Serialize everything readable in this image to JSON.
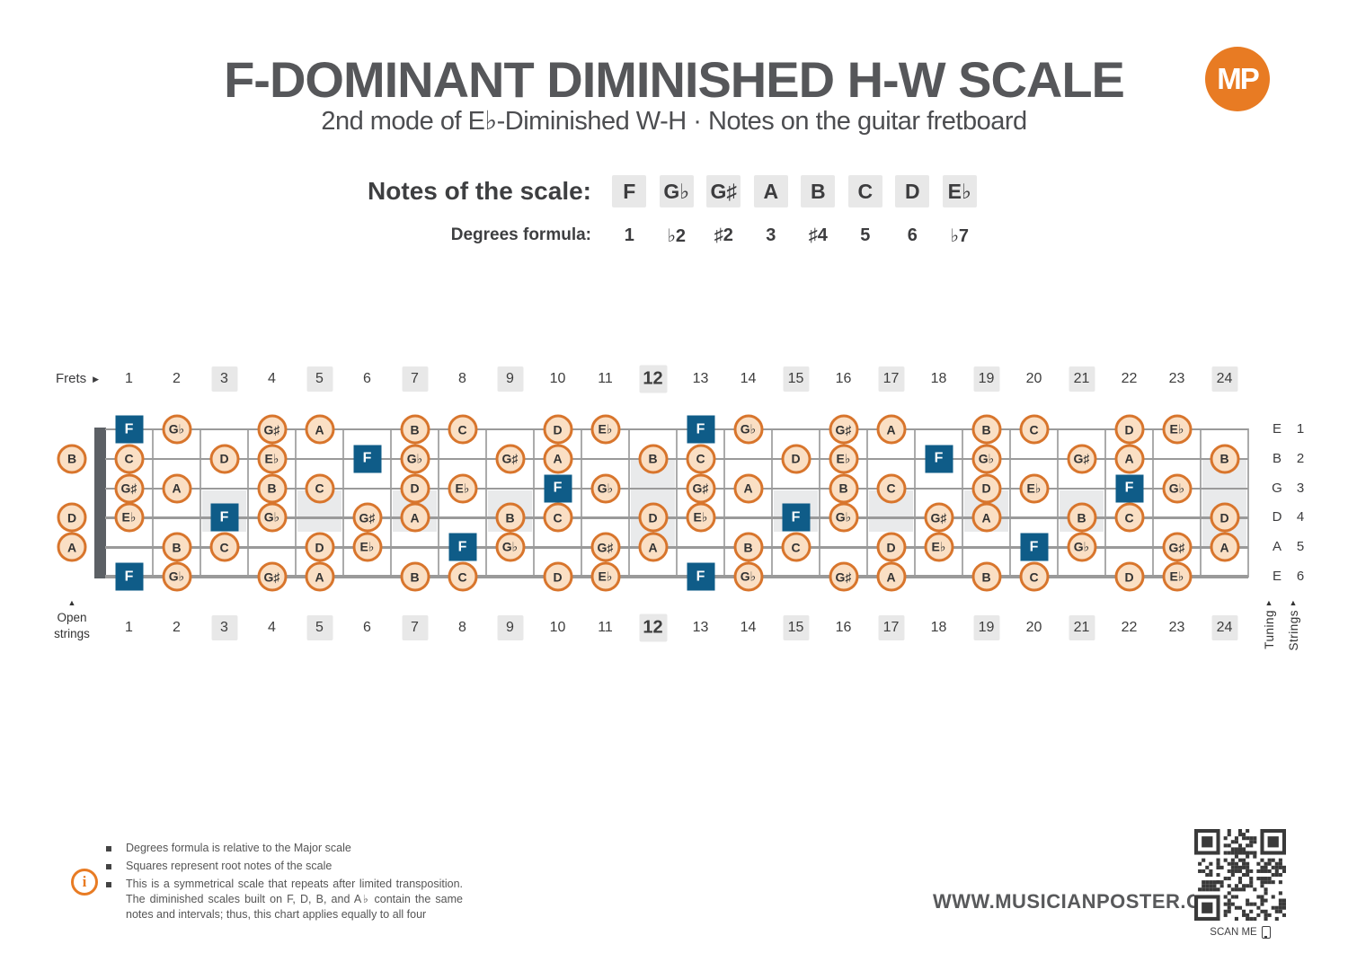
{
  "header": {
    "title": "F-DOMINANT DIMINISHED H-W SCALE",
    "subtitle": "2nd mode of E♭-Diminished W-H · Notes on the guitar fretboard",
    "logo_text": "MP"
  },
  "scale": {
    "notes_label": "Notes of the scale:",
    "degrees_label": "Degrees formula:",
    "notes": [
      "F",
      "G♭",
      "G♯",
      "A",
      "B",
      "C",
      "D",
      "E♭"
    ],
    "degrees": [
      "1",
      "♭2",
      "♯2",
      "3",
      "♯4",
      "5",
      "6",
      "♭7"
    ]
  },
  "fretboard": {
    "frets_label": "Frets",
    "open_strings_label": "Open strings",
    "tuning_label": "Tuning",
    "strings_label": "Strings",
    "fret_count": 24,
    "highlighted_frets": [
      3,
      5,
      7,
      9,
      12,
      15,
      17,
      19,
      21,
      24
    ],
    "emphasized_fret": 12,
    "single_inlay_frets": [
      3,
      5,
      7,
      9,
      15,
      17,
      19,
      21
    ],
    "double_inlay_frets": [
      12,
      24
    ],
    "strings": [
      {
        "number": 1,
        "tuning": "E",
        "open_note": null,
        "notes": [
          {
            "fret": 1,
            "label": "F",
            "root": true
          },
          {
            "fret": 2,
            "label": "G♭"
          },
          {
            "fret": 4,
            "label": "G♯"
          },
          {
            "fret": 5,
            "label": "A"
          },
          {
            "fret": 7,
            "label": "B"
          },
          {
            "fret": 8,
            "label": "C"
          },
          {
            "fret": 10,
            "label": "D"
          },
          {
            "fret": 11,
            "label": "E♭"
          },
          {
            "fret": 13,
            "label": "F",
            "root": true
          },
          {
            "fret": 14,
            "label": "G♭"
          },
          {
            "fret": 16,
            "label": "G♯"
          },
          {
            "fret": 17,
            "label": "A"
          },
          {
            "fret": 19,
            "label": "B"
          },
          {
            "fret": 20,
            "label": "C"
          },
          {
            "fret": 22,
            "label": "D"
          },
          {
            "fret": 23,
            "label": "E♭"
          }
        ]
      },
      {
        "number": 2,
        "tuning": "B",
        "open_note": "B",
        "notes": [
          {
            "fret": 1,
            "label": "C"
          },
          {
            "fret": 3,
            "label": "D"
          },
          {
            "fret": 4,
            "label": "E♭"
          },
          {
            "fret": 6,
            "label": "F",
            "root": true
          },
          {
            "fret": 7,
            "label": "G♭"
          },
          {
            "fret": 9,
            "label": "G♯"
          },
          {
            "fret": 10,
            "label": "A"
          },
          {
            "fret": 12,
            "label": "B"
          },
          {
            "fret": 13,
            "label": "C"
          },
          {
            "fret": 15,
            "label": "D"
          },
          {
            "fret": 16,
            "label": "E♭"
          },
          {
            "fret": 18,
            "label": "F",
            "root": true
          },
          {
            "fret": 19,
            "label": "G♭"
          },
          {
            "fret": 21,
            "label": "G♯"
          },
          {
            "fret": 22,
            "label": "A"
          },
          {
            "fret": 24,
            "label": "B"
          }
        ]
      },
      {
        "number": 3,
        "tuning": "G",
        "open_note": null,
        "notes": [
          {
            "fret": 1,
            "label": "G♯"
          },
          {
            "fret": 2,
            "label": "A"
          },
          {
            "fret": 4,
            "label": "B"
          },
          {
            "fret": 5,
            "label": "C"
          },
          {
            "fret": 7,
            "label": "D"
          },
          {
            "fret": 8,
            "label": "E♭"
          },
          {
            "fret": 10,
            "label": "F",
            "root": true
          },
          {
            "fret": 11,
            "label": "G♭"
          },
          {
            "fret": 13,
            "label": "G♯"
          },
          {
            "fret": 14,
            "label": "A"
          },
          {
            "fret": 16,
            "label": "B"
          },
          {
            "fret": 17,
            "label": "C"
          },
          {
            "fret": 19,
            "label": "D"
          },
          {
            "fret": 20,
            "label": "E♭"
          },
          {
            "fret": 22,
            "label": "F",
            "root": true
          },
          {
            "fret": 23,
            "label": "G♭"
          }
        ]
      },
      {
        "number": 4,
        "tuning": "D",
        "open_note": "D",
        "notes": [
          {
            "fret": 1,
            "label": "E♭"
          },
          {
            "fret": 3,
            "label": "F",
            "root": true
          },
          {
            "fret": 4,
            "label": "G♭"
          },
          {
            "fret": 6,
            "label": "G♯"
          },
          {
            "fret": 7,
            "label": "A"
          },
          {
            "fret": 9,
            "label": "B"
          },
          {
            "fret": 10,
            "label": "C"
          },
          {
            "fret": 12,
            "label": "D"
          },
          {
            "fret": 13,
            "label": "E♭"
          },
          {
            "fret": 15,
            "label": "F",
            "root": true
          },
          {
            "fret": 16,
            "label": "G♭"
          },
          {
            "fret": 18,
            "label": "G♯"
          },
          {
            "fret": 19,
            "label": "A"
          },
          {
            "fret": 21,
            "label": "B"
          },
          {
            "fret": 22,
            "label": "C"
          },
          {
            "fret": 24,
            "label": "D"
          }
        ]
      },
      {
        "number": 5,
        "tuning": "A",
        "open_note": "A",
        "notes": [
          {
            "fret": 2,
            "label": "B"
          },
          {
            "fret": 3,
            "label": "C"
          },
          {
            "fret": 5,
            "label": "D"
          },
          {
            "fret": 6,
            "label": "E♭"
          },
          {
            "fret": 8,
            "label": "F",
            "root": true
          },
          {
            "fret": 9,
            "label": "G♭"
          },
          {
            "fret": 11,
            "label": "G♯"
          },
          {
            "fret": 12,
            "label": "A"
          },
          {
            "fret": 14,
            "label": "B"
          },
          {
            "fret": 15,
            "label": "C"
          },
          {
            "fret": 17,
            "label": "D"
          },
          {
            "fret": 18,
            "label": "E♭"
          },
          {
            "fret": 20,
            "label": "F",
            "root": true
          },
          {
            "fret": 21,
            "label": "G♭"
          },
          {
            "fret": 23,
            "label": "G♯"
          },
          {
            "fret": 24,
            "label": "A"
          }
        ]
      },
      {
        "number": 6,
        "tuning": "E",
        "open_note": null,
        "notes": [
          {
            "fret": 1,
            "label": "F",
            "root": true
          },
          {
            "fret": 2,
            "label": "G♭"
          },
          {
            "fret": 4,
            "label": "G♯"
          },
          {
            "fret": 5,
            "label": "A"
          },
          {
            "fret": 7,
            "label": "B"
          },
          {
            "fret": 8,
            "label": "C"
          },
          {
            "fret": 10,
            "label": "D"
          },
          {
            "fret": 11,
            "label": "E♭"
          },
          {
            "fret": 13,
            "label": "F",
            "root": true
          },
          {
            "fret": 14,
            "label": "G♭"
          },
          {
            "fret": 16,
            "label": "G♯"
          },
          {
            "fret": 17,
            "label": "A"
          },
          {
            "fret": 19,
            "label": "B"
          },
          {
            "fret": 20,
            "label": "C"
          },
          {
            "fret": 22,
            "label": "D"
          },
          {
            "fret": 23,
            "label": "E♭"
          }
        ]
      }
    ]
  },
  "footer": {
    "bullets": [
      "Degrees formula is relative to the Major scale",
      "Squares represent root notes of the scale",
      "This is a symmetrical scale that repeats after limited transposition. The diminished scales built on F, D, B, and A♭ contain the same notes and intervals; thus, this chart applies equally to all four"
    ],
    "website": "WWW.MUSICIANPOSTER.COM",
    "scan_me": "SCAN ME"
  },
  "icons": {
    "frets_arrow": "▶",
    "up_arrow": "▲",
    "info": "i"
  },
  "colors": {
    "accent_orange": "#e87b23",
    "root_blue": "#0f5c88",
    "note_fill": "#fadfc4",
    "note_border": "#d8752c",
    "chip_bg": "#e8e8e8",
    "inlay_gray": "#e9eaeb",
    "title_gray": "#56575a"
  }
}
